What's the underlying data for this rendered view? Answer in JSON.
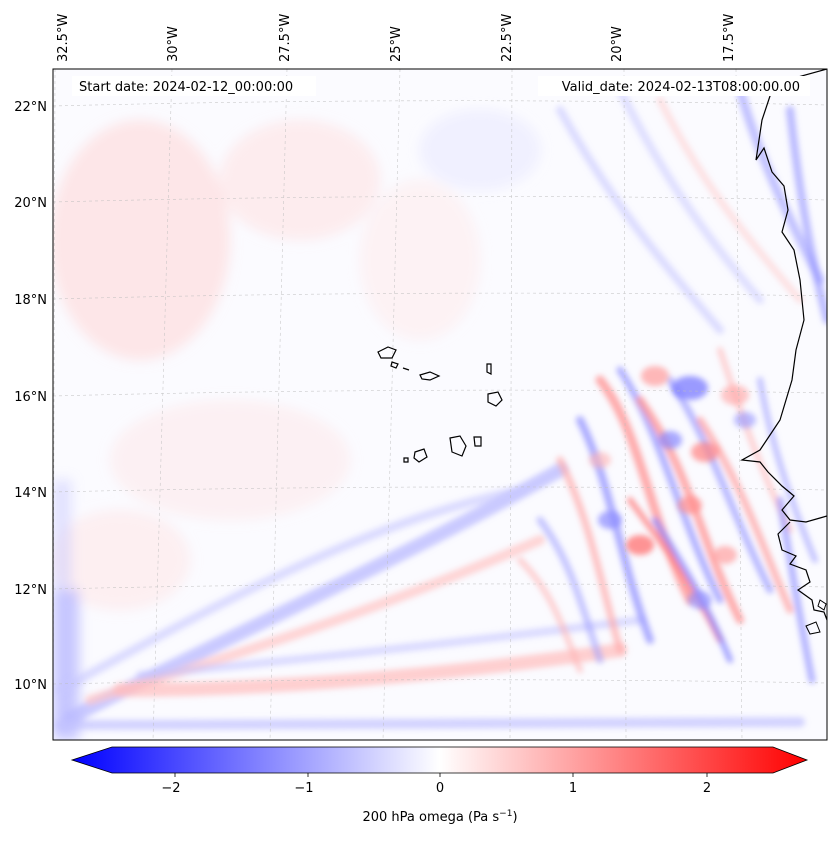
{
  "map": {
    "start_date": "Start date: 2024-02-12_00:00:00",
    "valid_date": "Valid_date: 2024-02-13T08:00:00.00",
    "lon_labels": [
      "32.5°W",
      "30°W",
      "27.5°W",
      "25°W",
      "22.5°W",
      "20°W",
      "17.5°W"
    ],
    "lat_labels": [
      "22°N",
      "20°N",
      "18°N",
      "16°N",
      "14°N",
      "12°N",
      "10°N"
    ],
    "field": "200 hPa omega",
    "colormap": "bwr"
  },
  "colorbar": {
    "ticks": [
      "−2",
      "−1",
      "0",
      "1",
      "2"
    ],
    "label_main": "200 hPa omega (Pa s",
    "label_sup": "−1",
    "label_close": ")",
    "range": [
      -2.7,
      2.7
    ],
    "colors": {
      "neg": "#0000ff",
      "mid": "#ffffff",
      "pos": "#ff0000"
    }
  }
}
